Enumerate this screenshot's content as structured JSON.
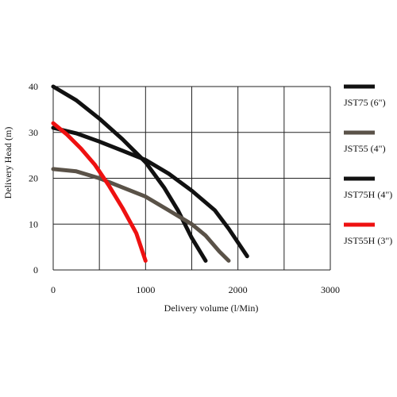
{
  "chart_data": {
    "type": "line",
    "title": "",
    "xlabel": "Delivery volume (l/Min)",
    "ylabel": "Delivery Head (m)",
    "xlim": [
      0,
      3000
    ],
    "ylim": [
      0,
      40
    ],
    "xticks": [
      0,
      1000,
      2000,
      3000
    ],
    "yticks": [
      0,
      10,
      20,
      30,
      40
    ],
    "x_tick_labels": [
      "0",
      "1000",
      "2000",
      "3000"
    ],
    "y_tick_labels": [
      "0",
      "10",
      "20",
      "30",
      "40"
    ],
    "grid": true,
    "legend_position": "right",
    "series": [
      {
        "name": "JST75 (6\")",
        "color": "#111111",
        "points": [
          [
            0,
            40
          ],
          [
            250,
            37
          ],
          [
            500,
            33
          ],
          [
            750,
            28.5
          ],
          [
            1000,
            23.5
          ],
          [
            1200,
            18
          ],
          [
            1350,
            13
          ],
          [
            1500,
            7
          ],
          [
            1650,
            2
          ]
        ]
      },
      {
        "name": "JST55 (4\")",
        "color": "#5a5248",
        "points": [
          [
            0,
            22
          ],
          [
            250,
            21.5
          ],
          [
            500,
            20
          ],
          [
            750,
            18
          ],
          [
            1000,
            16
          ],
          [
            1250,
            13
          ],
          [
            1500,
            10
          ],
          [
            1650,
            7.5
          ],
          [
            1800,
            4
          ],
          [
            1900,
            2
          ]
        ]
      },
      {
        "name": "JST75H (4\")",
        "color": "#111111",
        "points": [
          [
            0,
            31
          ],
          [
            250,
            29.8
          ],
          [
            500,
            28
          ],
          [
            750,
            26
          ],
          [
            1000,
            24
          ],
          [
            1250,
            21
          ],
          [
            1500,
            17.3
          ],
          [
            1750,
            13
          ],
          [
            1900,
            9
          ],
          [
            2000,
            6
          ],
          [
            2100,
            3
          ]
        ]
      },
      {
        "name": "JST55H (3\")",
        "color": "#ee1111",
        "points": [
          [
            0,
            32
          ],
          [
            150,
            29.5
          ],
          [
            300,
            26.5
          ],
          [
            450,
            23
          ],
          [
            600,
            18.5
          ],
          [
            750,
            13.5
          ],
          [
            900,
            8
          ],
          [
            1000,
            2
          ]
        ]
      }
    ]
  }
}
